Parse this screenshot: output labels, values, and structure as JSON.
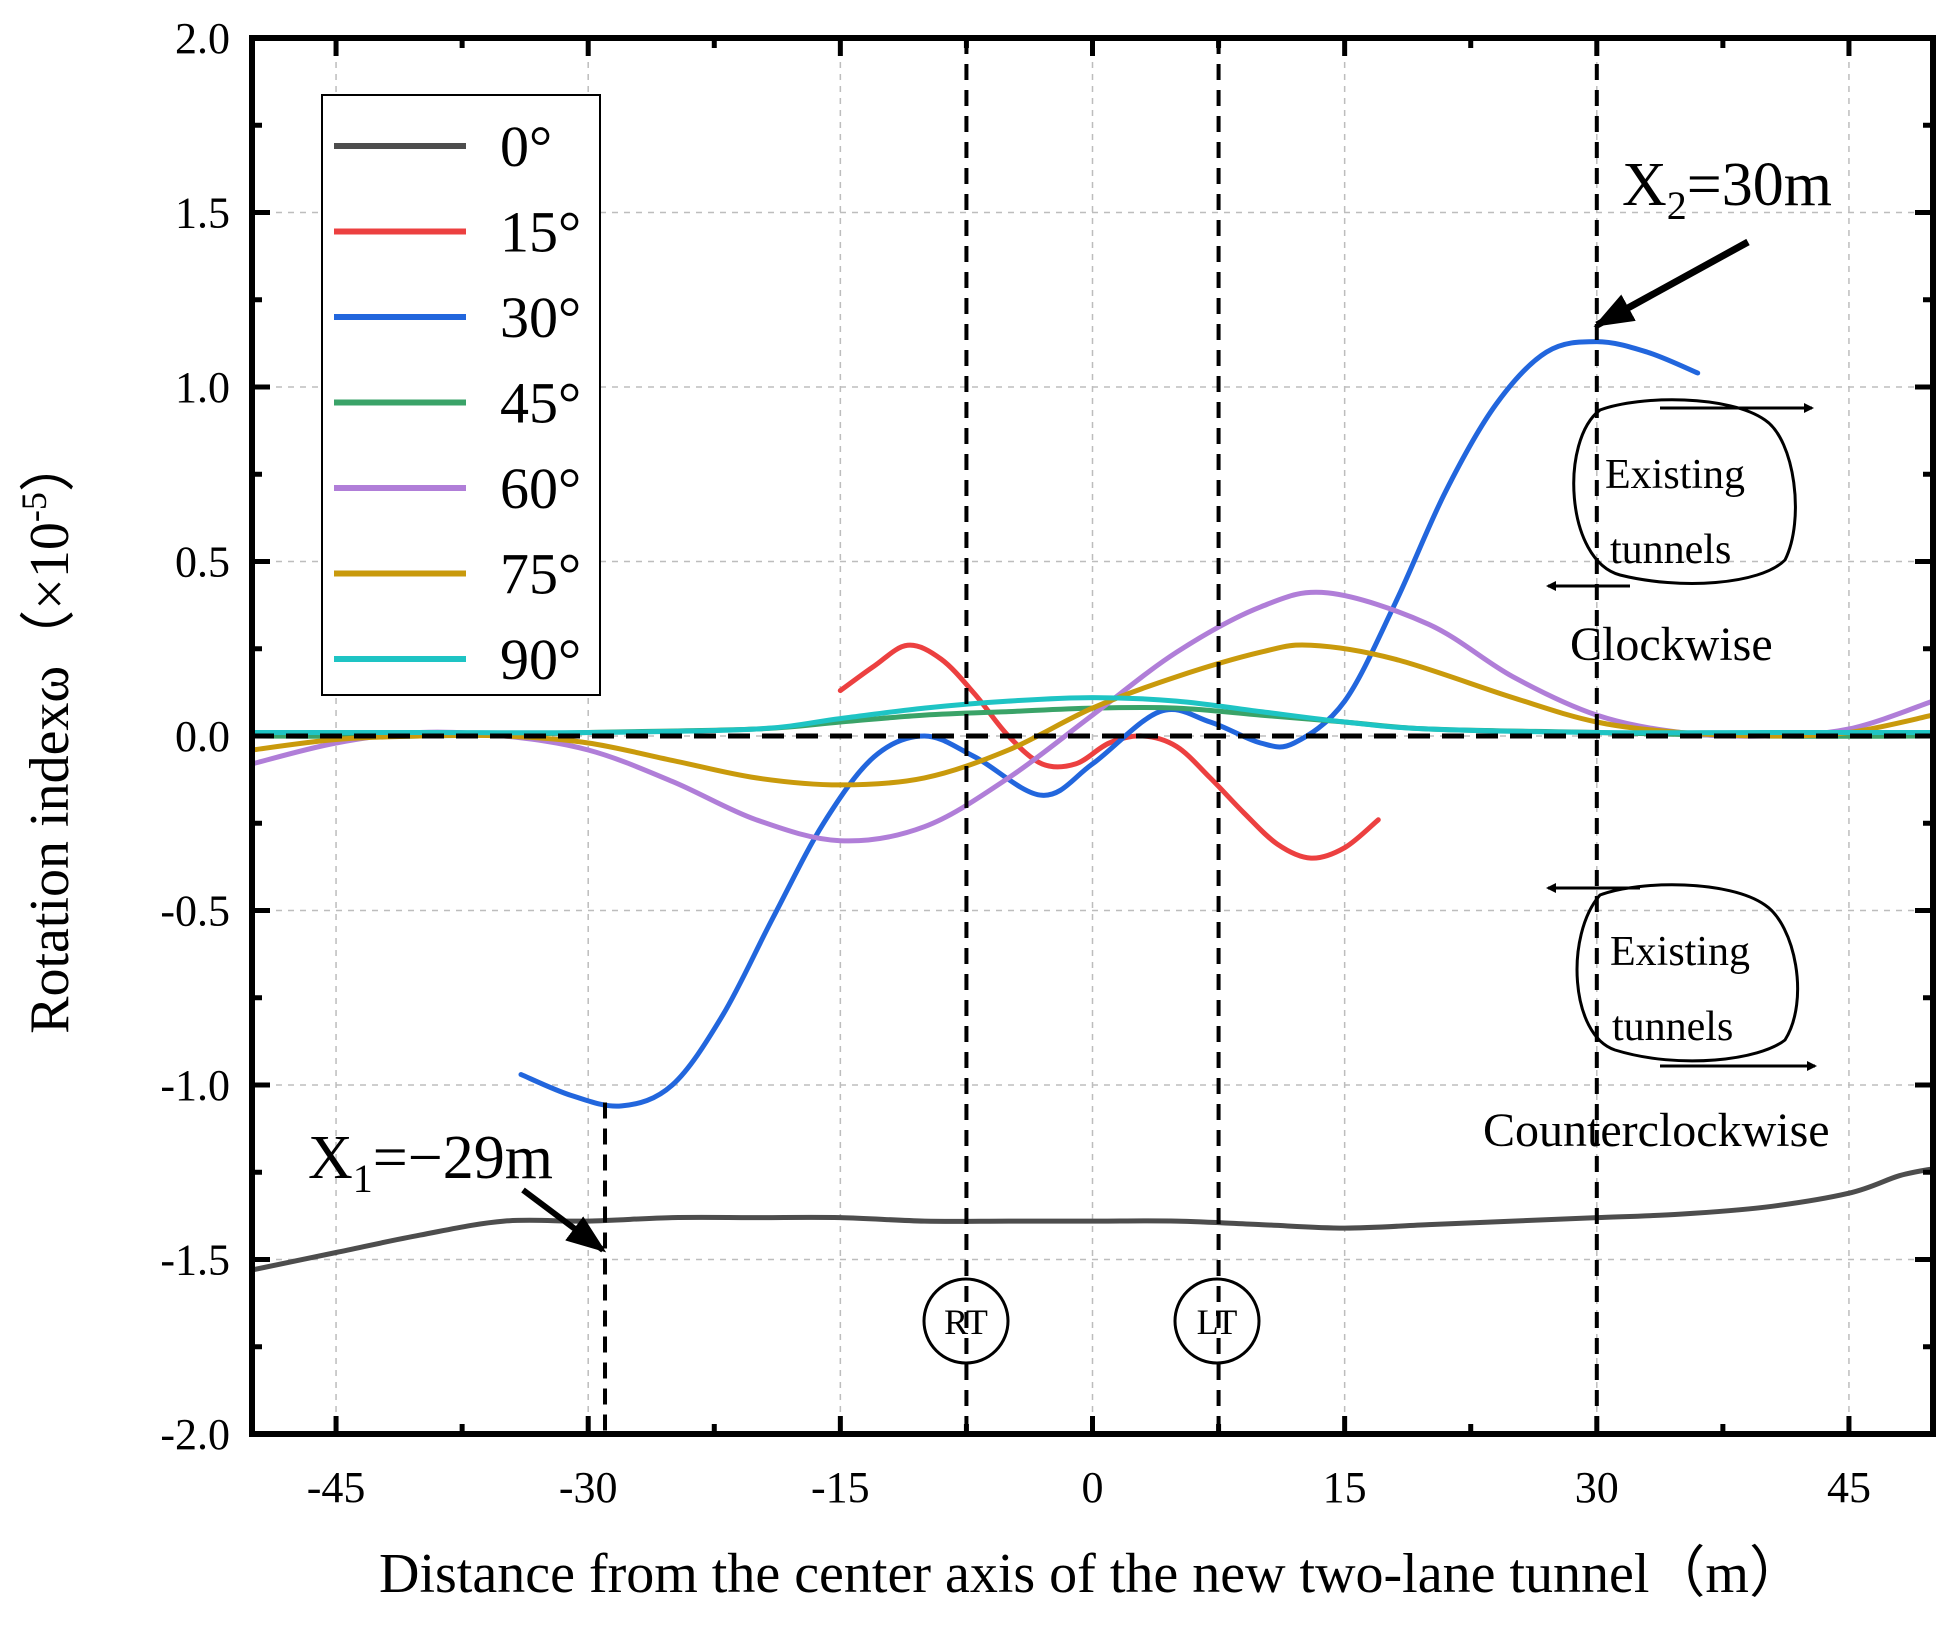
{
  "chart_data": {
    "type": "line",
    "xlabel": "Distance from the center axis of the new two-lane tunnel（m）",
    "ylabel": "Rotation indexω（×10",
    "ylabel_exp": "-5",
    "ylabel_close": "）",
    "xlim": [
      -50,
      50
    ],
    "ylim": [
      -2.0,
      2.0
    ],
    "xticks": [
      -45,
      -30,
      -15,
      0,
      15,
      30,
      45
    ],
    "yticks": [
      -2.0,
      -1.5,
      -1.0,
      -0.5,
      0.0,
      0.5,
      1.0,
      1.5,
      2.0
    ],
    "ytick_labels": [
      "-2.0",
      "-1.5",
      "-1.0",
      "-0.5",
      "0.0",
      "0.5",
      "1.0",
      "1.5",
      "2.0"
    ],
    "xtick_labels": [
      "-45",
      "-30",
      "-15",
      "0",
      "15",
      "30",
      "45"
    ],
    "grid": true,
    "legend_position": "top-left",
    "series": [
      {
        "name": "0°",
        "color": "#4d4d4d",
        "points": [
          [
            -50,
            -1.53
          ],
          [
            -45,
            -1.48
          ],
          [
            -40,
            -1.43
          ],
          [
            -35,
            -1.39
          ],
          [
            -30,
            -1.39
          ],
          [
            -25,
            -1.38
          ],
          [
            -20,
            -1.38
          ],
          [
            -15,
            -1.38
          ],
          [
            -10,
            -1.39
          ],
          [
            -5,
            -1.39
          ],
          [
            0,
            -1.39
          ],
          [
            5,
            -1.39
          ],
          [
            10,
            -1.4
          ],
          [
            15,
            -1.41
          ],
          [
            20,
            -1.4
          ],
          [
            25,
            -1.39
          ],
          [
            30,
            -1.38
          ],
          [
            35,
            -1.37
          ],
          [
            40,
            -1.35
          ],
          [
            45,
            -1.31
          ],
          [
            48,
            -1.26
          ],
          [
            50,
            -1.24
          ]
        ]
      },
      {
        "name": "15°",
        "color": "#ec4040",
        "points": [
          [
            -15,
            0.13
          ],
          [
            -13,
            0.2
          ],
          [
            -11,
            0.26
          ],
          [
            -9,
            0.22
          ],
          [
            -7,
            0.12
          ],
          [
            -5,
            0.0
          ],
          [
            -3,
            -0.08
          ],
          [
            -1,
            -0.08
          ],
          [
            1,
            -0.02
          ],
          [
            3,
            0.0
          ],
          [
            5,
            -0.03
          ],
          [
            7,
            -0.12
          ],
          [
            9,
            -0.22
          ],
          [
            11,
            -0.31
          ],
          [
            13,
            -0.35
          ],
          [
            15,
            -0.32
          ],
          [
            17,
            -0.24
          ]
        ]
      },
      {
        "name": "30°",
        "color": "#2266dd",
        "points": [
          [
            -34,
            -0.97
          ],
          [
            -31,
            -1.03
          ],
          [
            -28,
            -1.06
          ],
          [
            -25,
            -1.0
          ],
          [
            -22,
            -0.8
          ],
          [
            -19,
            -0.52
          ],
          [
            -16,
            -0.25
          ],
          [
            -13,
            -0.06
          ],
          [
            -10,
            0.0
          ],
          [
            -7,
            -0.06
          ],
          [
            -3,
            -0.17
          ],
          [
            0,
            -0.08
          ],
          [
            4,
            0.07
          ],
          [
            7,
            0.04
          ],
          [
            10,
            -0.02
          ],
          [
            12,
            -0.02
          ],
          [
            15,
            0.1
          ],
          [
            18,
            0.38
          ],
          [
            21,
            0.7
          ],
          [
            24,
            0.95
          ],
          [
            27,
            1.1
          ],
          [
            30,
            1.13
          ],
          [
            33,
            1.1
          ],
          [
            36,
            1.04
          ]
        ]
      },
      {
        "name": "45°",
        "color": "#3aa368",
        "points": [
          [
            -50,
            0.0
          ],
          [
            -40,
            0.0
          ],
          [
            -30,
            0.01
          ],
          [
            -20,
            0.02
          ],
          [
            -15,
            0.04
          ],
          [
            -10,
            0.06
          ],
          [
            -5,
            0.07
          ],
          [
            0,
            0.08
          ],
          [
            5,
            0.08
          ],
          [
            10,
            0.06
          ],
          [
            15,
            0.04
          ],
          [
            20,
            0.02
          ],
          [
            30,
            0.01
          ],
          [
            40,
            0.0
          ],
          [
            50,
            0.0
          ]
        ]
      },
      {
        "name": "60°",
        "color": "#b07ed8",
        "points": [
          [
            -50,
            -0.08
          ],
          [
            -45,
            -0.02
          ],
          [
            -40,
            0.01
          ],
          [
            -35,
            0.0
          ],
          [
            -30,
            -0.04
          ],
          [
            -25,
            -0.13
          ],
          [
            -20,
            -0.24
          ],
          [
            -15,
            -0.3
          ],
          [
            -10,
            -0.26
          ],
          [
            -5,
            -0.12
          ],
          [
            0,
            0.06
          ],
          [
            5,
            0.24
          ],
          [
            10,
            0.37
          ],
          [
            14,
            0.41
          ],
          [
            20,
            0.32
          ],
          [
            25,
            0.17
          ],
          [
            30,
            0.06
          ],
          [
            35,
            0.01
          ],
          [
            40,
            0.0
          ],
          [
            45,
            0.02
          ],
          [
            50,
            0.1
          ]
        ]
      },
      {
        "name": "75°",
        "color": "#c99a0c",
        "points": [
          [
            -50,
            -0.04
          ],
          [
            -45,
            -0.01
          ],
          [
            -40,
            0.0
          ],
          [
            -35,
            0.0
          ],
          [
            -30,
            -0.02
          ],
          [
            -25,
            -0.07
          ],
          [
            -20,
            -0.12
          ],
          [
            -15,
            -0.14
          ],
          [
            -10,
            -0.12
          ],
          [
            -5,
            -0.04
          ],
          [
            0,
            0.08
          ],
          [
            5,
            0.17
          ],
          [
            10,
            0.24
          ],
          [
            13,
            0.26
          ],
          [
            18,
            0.22
          ],
          [
            25,
            0.11
          ],
          [
            30,
            0.04
          ],
          [
            35,
            0.01
          ],
          [
            40,
            0.0
          ],
          [
            45,
            0.01
          ],
          [
            50,
            0.06
          ]
        ]
      },
      {
        "name": "90°",
        "color": "#1ec4c4",
        "points": [
          [
            -50,
            0.01
          ],
          [
            -40,
            0.01
          ],
          [
            -30,
            0.01
          ],
          [
            -20,
            0.02
          ],
          [
            -15,
            0.05
          ],
          [
            -10,
            0.08
          ],
          [
            -5,
            0.1
          ],
          [
            0,
            0.11
          ],
          [
            5,
            0.1
          ],
          [
            10,
            0.07
          ],
          [
            15,
            0.04
          ],
          [
            20,
            0.02
          ],
          [
            30,
            0.01
          ],
          [
            40,
            0.01
          ],
          [
            50,
            0.01
          ]
        ]
      }
    ],
    "reference_lines": {
      "zero_dashed": true,
      "vertical_dashed_x": [
        -29,
        -7.5,
        7.5,
        30
      ]
    },
    "annotations": {
      "x1_main": "X",
      "x1_sub": "1",
      "x1_rest": "=−29m",
      "x2_main": "X",
      "x2_sub": "2",
      "x2_rest": "=30m",
      "rt": "RT",
      "lt": "LT",
      "existing_top_1": "Existing",
      "existing_top_2": "tunnels",
      "clockwise": "Clockwise",
      "existing_bottom_1": "Existing",
      "existing_bottom_2": "tunnels",
      "counterclockwise": "Counterclockwise"
    }
  }
}
